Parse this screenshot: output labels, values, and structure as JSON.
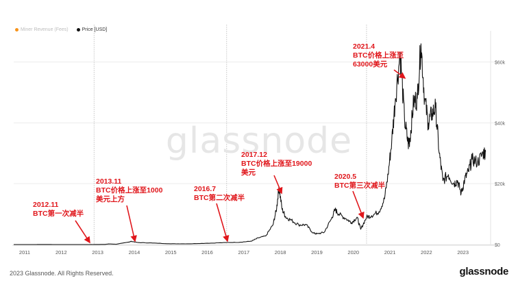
{
  "legend": {
    "items": [
      {
        "label": "Miner Revenue (Fees)",
        "color": "#f7931a",
        "muted": true
      },
      {
        "label": "Price [USD]",
        "color": "#111111",
        "muted": false
      }
    ]
  },
  "watermark": "glassnode",
  "footer": {
    "copyright": "2023 Glassnode. All Rights Reserved.",
    "logo": "glassnode"
  },
  "annotations": [
    {
      "text": "2012.11\nBTC第一次减半",
      "date": 2012.9
    },
    {
      "text": "2013.11\nBTC价格上涨至1000\n美元上方",
      "date": 2013.92
    },
    {
      "text": "2016.7\nBTC第二次减半",
      "date": 2016.53
    },
    {
      "text": "2017.12\nBTC价格上涨至19000\n美元",
      "date": 2017.96
    },
    {
      "text": "2020.5\nBTC第三次减半",
      "date": 2020.36
    },
    {
      "text": "2021.4\nBTC价格上涨至\n63000美元",
      "date": 2021.28
    }
  ],
  "chart_data": {
    "type": "line",
    "title": "",
    "xlabel": "",
    "ylabel": "",
    "x_ticks": [
      "2011",
      "2012",
      "2013",
      "2014",
      "2015",
      "2016",
      "2017",
      "2018",
      "2019",
      "2020",
      "2021",
      "2022",
      "2023"
    ],
    "y_ticks": [
      "$0",
      "$20k",
      "$40k",
      "$60k"
    ],
    "xlim": [
      2010.7,
      2023.7
    ],
    "ylim": [
      0,
      68000
    ],
    "halving_lines": [
      2012.9,
      2016.53,
      2020.36
    ],
    "grid": true,
    "series": [
      {
        "name": "Price [USD]",
        "color": "#111111",
        "x": [
          2010.7,
          2011.3,
          2011.45,
          2011.9,
          2012.5,
          2012.9,
          2013.2,
          2013.3,
          2013.5,
          2013.85,
          2013.92,
          2014.1,
          2014.5,
          2015.0,
          2015.5,
          2016.0,
          2016.5,
          2016.9,
          2017.2,
          2017.4,
          2017.6,
          2017.8,
          2017.9,
          2017.96,
          2018.05,
          2018.15,
          2018.3,
          2018.5,
          2018.7,
          2018.9,
          2019.0,
          2019.2,
          2019.4,
          2019.5,
          2019.6,
          2019.8,
          2019.95,
          2020.1,
          2020.2,
          2020.36,
          2020.5,
          2020.7,
          2020.85,
          2020.95,
          2021.05,
          2021.15,
          2021.28,
          2021.4,
          2021.5,
          2021.55,
          2021.65,
          2021.75,
          2021.85,
          2021.95,
          2022.05,
          2022.15,
          2022.25,
          2022.35,
          2022.45,
          2022.6,
          2022.75,
          2022.85,
          2022.95,
          2023.05,
          2023.15,
          2023.25,
          2023.4,
          2023.55,
          2023.62
        ],
        "values": [
          0,
          5,
          25,
          3,
          7,
          12,
          50,
          200,
          100,
          800,
          1050,
          650,
          500,
          250,
          250,
          420,
          650,
          750,
          1100,
          2200,
          2800,
          6500,
          12000,
          19000,
          11500,
          9000,
          8000,
          6500,
          6500,
          3800,
          3500,
          4000,
          8500,
          11500,
          10000,
          8500,
          7200,
          9000,
          5000,
          9000,
          9500,
          10800,
          15000,
          23000,
          34000,
          48000,
          63000,
          41000,
          33000,
          35000,
          47000,
          48000,
          66000,
          48000,
          40000,
          43000,
          45000,
          30000,
          21000,
          23000,
          20000,
          21000,
          16800,
          21500,
          24000,
          28000,
          27000,
          30000,
          30500
        ]
      }
    ]
  }
}
